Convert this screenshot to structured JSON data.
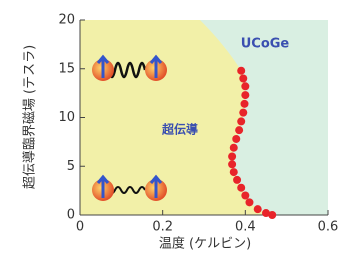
{
  "chart_data": {
    "type": "scatter",
    "xlabel": "温度 (ケルビン)",
    "ylabel": "超伝導臨界磁場 (テスラ)",
    "annotations": [
      "UCoGe",
      "超伝導"
    ],
    "x": [
      0.39,
      0.395,
      0.4,
      0.4,
      0.398,
      0.395,
      0.39,
      0.385,
      0.378,
      0.372,
      0.368,
      0.368,
      0.372,
      0.38,
      0.39,
      0.4,
      0.41,
      0.43,
      0.45,
      0.465
    ],
    "values": [
      14.8,
      14.0,
      13.2,
      12.3,
      11.4,
      10.5,
      9.6,
      8.7,
      7.8,
      6.9,
      6.0,
      5.2,
      4.4,
      3.6,
      2.8,
      2.0,
      1.3,
      0.6,
      0.2,
      0.0
    ],
    "color": "#e8242a",
    "xlim": [
      0,
      0.6
    ],
    "ylim": [
      0,
      20
    ],
    "xticks": [
      0,
      0.2,
      0.4,
      0.6
    ],
    "yticks": [
      0,
      5,
      10,
      15,
      20
    ]
  }
}
